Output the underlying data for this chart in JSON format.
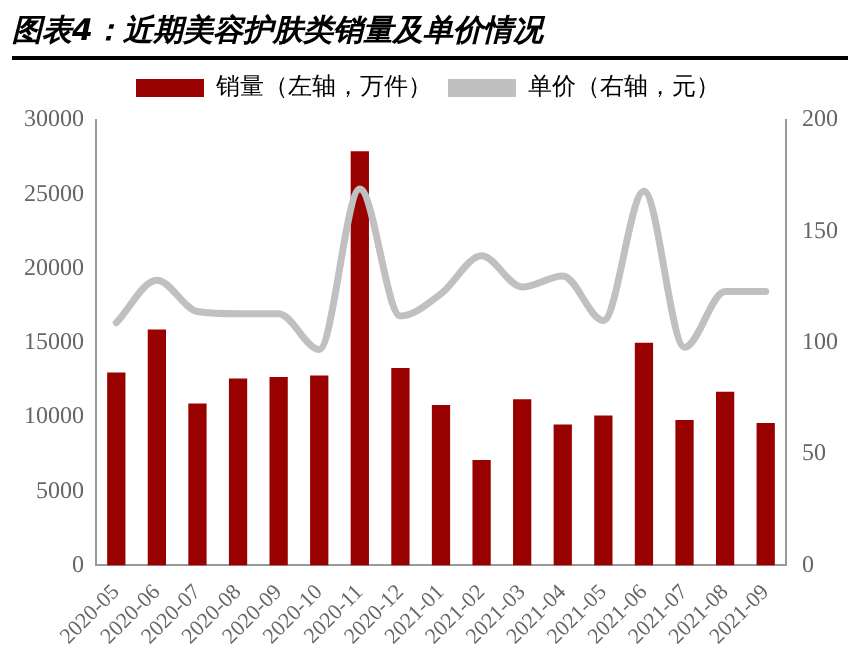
{
  "chart_data": {
    "type": "bar",
    "title": "图表4：近期美容护肤类销量及单价情况",
    "categories": [
      "2020-05",
      "2020-06",
      "2020-07",
      "2020-08",
      "2020-09",
      "2020-10",
      "2020-11",
      "2020-12",
      "2021-01",
      "2021-02",
      "2021-03",
      "2021-04",
      "2021-05",
      "2021-06",
      "2021-07",
      "2021-08",
      "2021-09"
    ],
    "series": [
      {
        "name": "销量（左轴，万件）",
        "color": "#990000",
        "values": [
          13000,
          15900,
          10900,
          12600,
          12700,
          12800,
          27900,
          13300,
          10800,
          7100,
          11200,
          9500,
          10100,
          15000,
          9800,
          11700,
          9600
        ]
      },
      {
        "name": "单价（右轴，元）",
        "type": "line",
        "axis": "y2",
        "color": "#c0c0c0",
        "values": [
          109,
          128,
          114,
          113,
          113,
          97,
          169,
          112,
          122,
          139,
          125,
          130,
          110,
          168,
          98,
          123,
          123
        ]
      }
    ],
    "ylim": [
      0,
      30000
    ],
    "yticks": [
      0,
      5000,
      10000,
      15000,
      20000,
      25000,
      30000
    ],
    "y2lim": [
      0,
      200
    ],
    "y2ticks": [
      0,
      50,
      100,
      150,
      200
    ],
    "legend": "top",
    "grid": false,
    "marker": "none",
    "line_style": "solid"
  }
}
